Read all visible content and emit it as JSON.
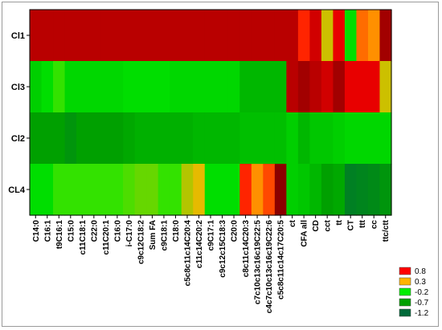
{
  "chart_data": {
    "type": "heatmap",
    "rows": [
      "Cl1",
      "Cl3",
      "Cl2",
      "CL4"
    ],
    "columns": [
      "C14:0",
      "C16:1",
      "t9C16:1",
      "C15:0",
      "c11C18:1",
      "C22:0",
      "c11C20:1",
      "C16:0",
      "i-C17:0",
      "c9c12C18:2",
      "Sum FA",
      "c9C18:1",
      "C18:0",
      "c5c8c11c14C20:4",
      "c11c14C20:2",
      "c9C17:1",
      "c9c12c15C18:3",
      "C20:0",
      "c8c11c14C20:3",
      "c7c10c13c16c19C22:5",
      "c4c7c10c13c16c19C22:6",
      "c5c8c11c14c17C20:5",
      "ct",
      "CFA all",
      "CD",
      "cct",
      "tt",
      "CT",
      "ttt",
      "cc",
      "ttc/ctt"
    ],
    "values": [
      [
        0.7,
        0.7,
        0.7,
        0.7,
        0.7,
        0.7,
        0.7,
        0.7,
        0.7,
        0.7,
        0.7,
        0.7,
        0.7,
        0.7,
        0.7,
        0.7,
        0.7,
        0.7,
        0.7,
        0.7,
        0.7,
        0.7,
        0.7,
        0.5,
        0.65,
        0.2,
        0.6,
        -0.3,
        0.4,
        0.35,
        0.75
      ],
      [
        -0.4,
        -0.3,
        -0.1,
        -0.35,
        -0.35,
        -0.35,
        -0.35,
        -0.35,
        -0.3,
        -0.3,
        -0.3,
        -0.3,
        -0.35,
        -0.35,
        -0.35,
        -0.35,
        -0.35,
        -0.35,
        -0.55,
        -0.55,
        -0.55,
        -0.55,
        0.7,
        0.75,
        0.7,
        0.65,
        0.75,
        0.6,
        0.6,
        0.6,
        0.2
      ],
      [
        -0.7,
        -0.7,
        -0.7,
        -0.8,
        -0.7,
        -0.7,
        -0.7,
        -0.7,
        -0.65,
        -0.6,
        -0.6,
        -0.6,
        -0.6,
        -0.6,
        -0.55,
        -0.55,
        -0.55,
        -0.55,
        -0.5,
        -0.5,
        -0.5,
        -0.5,
        -0.4,
        -0.55,
        -0.45,
        -0.45,
        -0.4,
        -0.35,
        -0.35,
        -0.35,
        -0.35
      ],
      [
        -0.3,
        -0.3,
        -0.1,
        -0.1,
        -0.1,
        -0.1,
        -0.1,
        -0.1,
        -0.05,
        0.0,
        0.0,
        -0.1,
        -0.1,
        0.15,
        0.25,
        -0.3,
        -0.3,
        -0.3,
        0.5,
        0.35,
        0.45,
        0.8,
        -0.4,
        -0.45,
        -0.55,
        -0.7,
        -0.65,
        -1.0,
        -0.95,
        -0.9,
        -0.8
      ]
    ],
    "legend": {
      "placement": "bottom-right",
      "entries": [
        {
          "label": "0.8",
          "color": "#ff0000"
        },
        {
          "label": "0.3",
          "color": "#ffb400"
        },
        {
          "label": "-0.2",
          "color": "#00ee00"
        },
        {
          "label": "-0.7",
          "color": "#00a000"
        },
        {
          "label": "-1.2",
          "color": "#006a3a"
        }
      ]
    }
  }
}
